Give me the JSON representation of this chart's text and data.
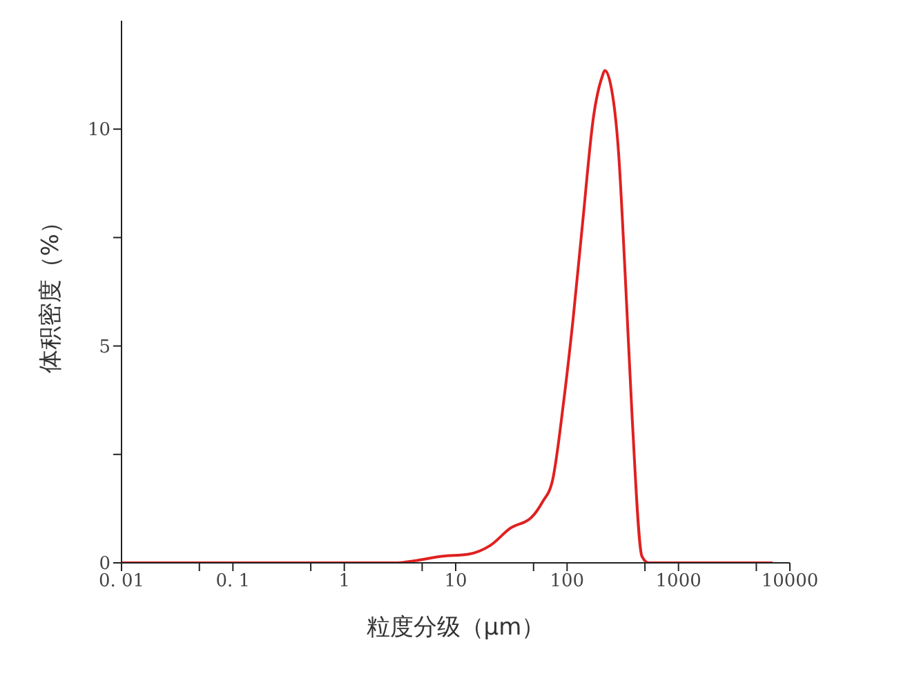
{
  "chart_data": {
    "type": "line",
    "xlabel": "粒度分级（μm）",
    "ylabel": "体积密度（%）",
    "log": "x",
    "xlim": [
      0.01,
      10000
    ],
    "xticks": [
      {
        "value": 0.01,
        "label": "0. 01"
      },
      {
        "value": 0.05,
        "label": null
      },
      {
        "value": 0.1,
        "label": "0. 1"
      },
      {
        "value": 0.5,
        "label": null
      },
      1,
      {
        "value": 5,
        "label": null
      },
      10,
      {
        "value": 50,
        "label": null
      },
      100,
      {
        "value": 500,
        "label": null
      },
      1000,
      {
        "value": 5000,
        "label": null
      },
      10000
    ],
    "ylim": [
      0,
      12.5
    ],
    "yticks": [
      0,
      {
        "value": 2.5,
        "label": null
      },
      5,
      {
        "value": 7.5,
        "label": null
      },
      10
    ],
    "grid": false,
    "marker": "none",
    "line_style": "solid",
    "series": [
      {
        "color": "#e02020",
        "x": [
          0.01,
          3,
          4.3,
          7.5,
          13,
          20.4,
          31,
          48,
          60,
          74,
          93,
          113,
          138,
          173,
          206,
          218,
          245,
          290,
          333,
          383,
          470,
          540,
          7000
        ],
        "values": [
          0,
          0,
          0.05,
          0.15,
          0.2,
          0.4,
          0.8,
          1.05,
          1.4,
          1.9,
          3.7,
          5.6,
          7.85,
          10.3,
          11.2,
          11.35,
          11.05,
          9.45,
          6.6,
          3.4,
          0.15,
          0,
          0
        ]
      }
    ]
  }
}
